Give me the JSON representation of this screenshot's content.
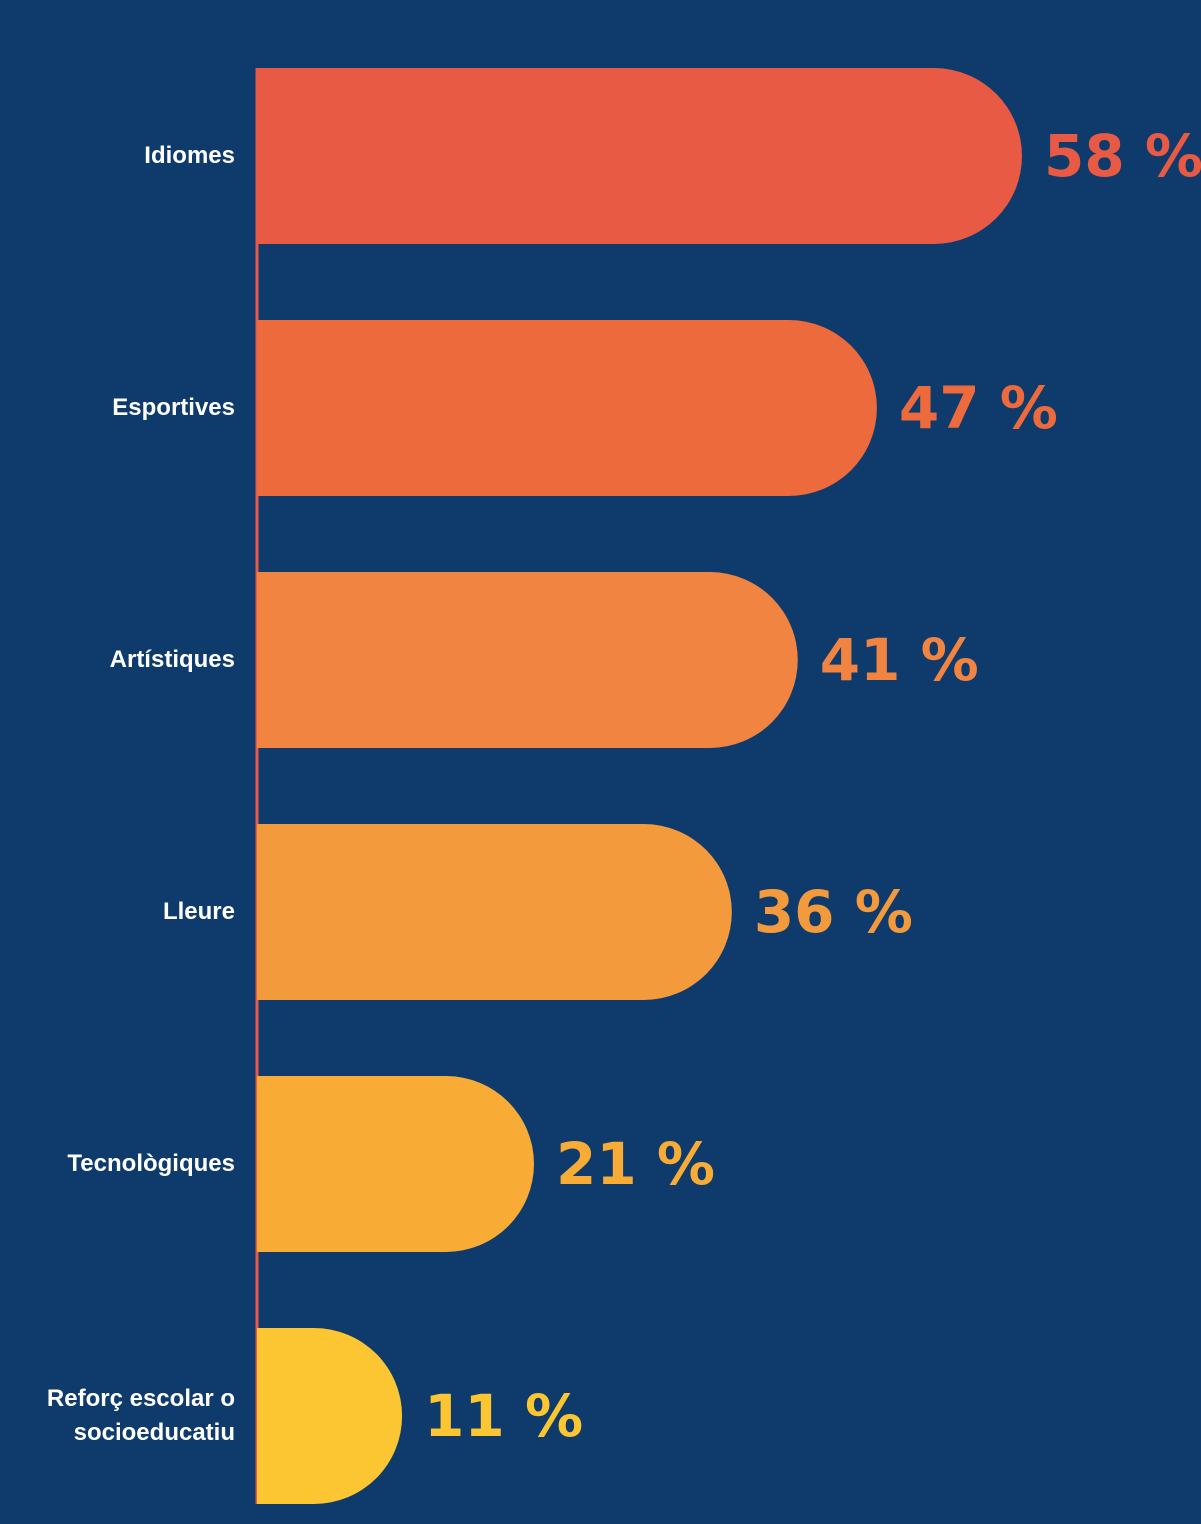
{
  "chart_data": {
    "type": "bar",
    "orientation": "horizontal",
    "categories": [
      "Idiomes",
      "Esportives",
      "Artístiques",
      "Lleure",
      "Tecnològiques",
      "Reforç escolar o socioeducatiu"
    ],
    "values": [
      58,
      47,
      41,
      36,
      21,
      11
    ],
    "value_labels": [
      "58 %",
      "47 %",
      "41 %",
      "36 %",
      "21 %",
      "11 %"
    ],
    "colors": [
      "#e85a43",
      "#ec6a3c",
      "#f08440",
      "#f39a3d",
      "#f8ac35",
      "#fcc532"
    ]
  }
}
